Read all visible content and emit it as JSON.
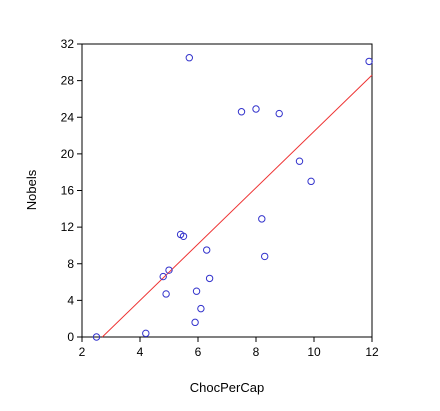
{
  "chart_data": {
    "type": "scatter",
    "title": "",
    "xlabel": "ChocPerCap",
    "ylabel": "Nobels",
    "xlim": [
      2,
      12
    ],
    "ylim": [
      0,
      32
    ],
    "xticks": [
      2,
      4,
      6,
      8,
      10,
      12
    ],
    "yticks": [
      0,
      4,
      8,
      12,
      16,
      20,
      24,
      28,
      32
    ],
    "grid": false,
    "points_color": "#3333cc",
    "fit_color": "#ee3333",
    "points": [
      {
        "x": 2.5,
        "y": 0.0
      },
      {
        "x": 4.2,
        "y": 0.4
      },
      {
        "x": 4.8,
        "y": 6.6
      },
      {
        "x": 4.9,
        "y": 4.7
      },
      {
        "x": 5.0,
        "y": 7.3
      },
      {
        "x": 5.4,
        "y": 11.2
      },
      {
        "x": 5.5,
        "y": 11.0
      },
      {
        "x": 5.7,
        "y": 30.5
      },
      {
        "x": 5.9,
        "y": 1.6
      },
      {
        "x": 5.95,
        "y": 5.0
      },
      {
        "x": 6.1,
        "y": 3.1
      },
      {
        "x": 6.3,
        "y": 9.5
      },
      {
        "x": 6.4,
        "y": 6.4
      },
      {
        "x": 7.5,
        "y": 24.6
      },
      {
        "x": 8.0,
        "y": 24.9
      },
      {
        "x": 8.2,
        "y": 12.9
      },
      {
        "x": 8.3,
        "y": 8.8
      },
      {
        "x": 8.8,
        "y": 24.4
      },
      {
        "x": 9.5,
        "y": 19.2
      },
      {
        "x": 9.9,
        "y": 17.0
      },
      {
        "x": 11.9,
        "y": 30.1
      }
    ],
    "fit_line": {
      "x": [
        2.7,
        12
      ],
      "y": [
        0,
        28.6
      ]
    }
  }
}
